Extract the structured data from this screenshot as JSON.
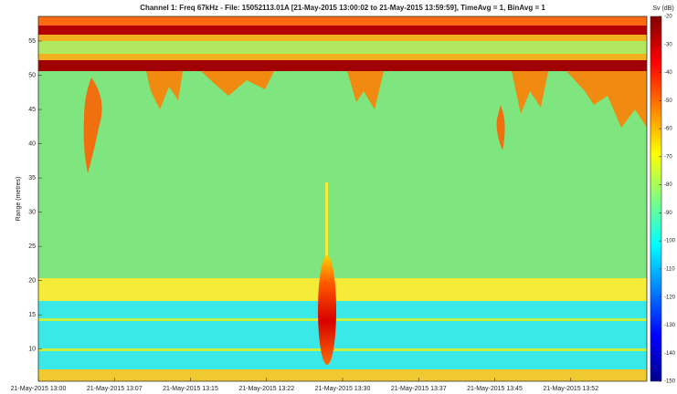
{
  "chart_data": {
    "type": "heatmap",
    "title": "Channel 1: Freq 67kHz - File: 15052113.01A  [21-May-2015 13:00:02 to 21-May-2015 13:59:59], TimeAvg = 1, BinAvg = 1",
    "y_label": "Range (metres)",
    "ylim": [
      5.3,
      58.6
    ],
    "yticks": [
      10,
      15,
      20,
      25,
      30,
      35,
      40,
      45,
      50,
      55
    ],
    "xlim": [
      0,
      60
    ],
    "xticks": [
      {
        "value": 0,
        "label": "21-May-2015 13:00"
      },
      {
        "value": 7.5,
        "label": "21-May-2015 13:07"
      },
      {
        "value": 15,
        "label": "21-May-2015 13:15"
      },
      {
        "value": 22.5,
        "label": "21-May-2015 13:22"
      },
      {
        "value": 30,
        "label": "21-May-2015 13:30"
      },
      {
        "value": 37.5,
        "label": "21-May-2015 13:37"
      },
      {
        "value": 45,
        "label": "21-May-2015 13:45"
      },
      {
        "value": 52.5,
        "label": "21-May-2015 13:52"
      }
    ],
    "colorbar_label": "Sv (dB)",
    "clim": [
      -150,
      -20
    ],
    "cticks": [
      -150,
      -140,
      -130,
      -120,
      -110,
      -100,
      -90,
      -80,
      -70,
      -60,
      -50,
      -40,
      -30,
      -20
    ],
    "colormap": "jet"
  }
}
